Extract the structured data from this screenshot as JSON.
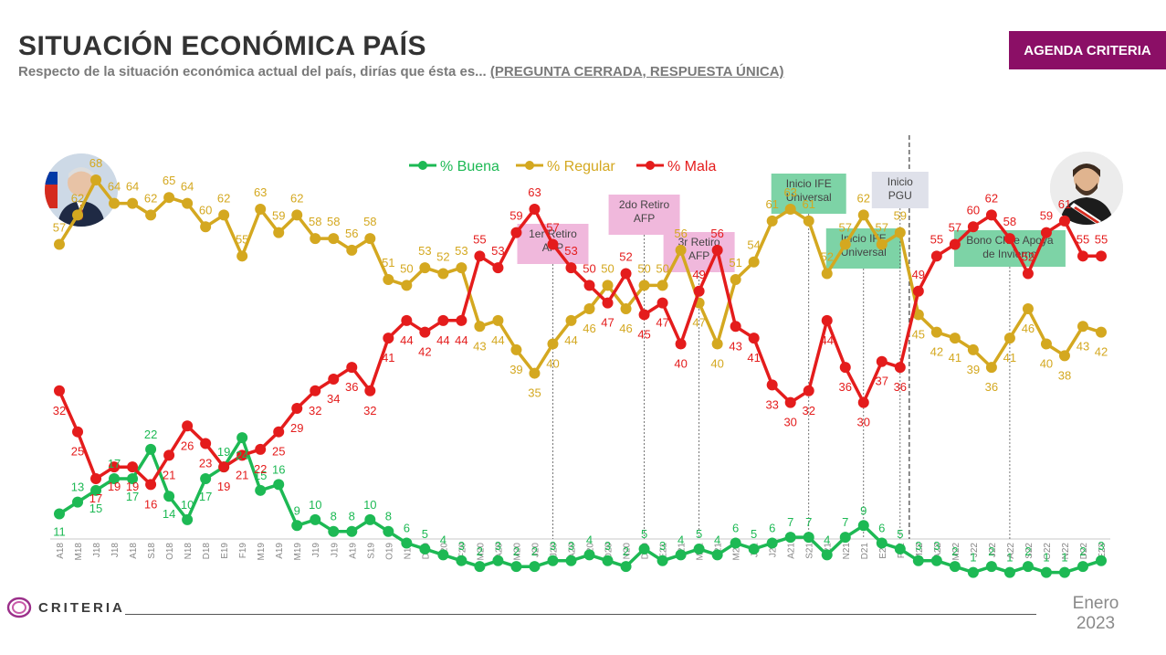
{
  "header": {
    "title": "SITUACIÓN ECONÓMICA PAÍS",
    "subtitle_main": "Respecto de la situación económica actual del país, dirías que ésta es... ",
    "subtitle_emph": "(PREGUNTA CERRADA, RESPUESTA ÚNICA)",
    "badge": "AGENDA CRITERIA"
  },
  "footer": {
    "logo_text": "CRITERIA",
    "date_line1": "Enero",
    "date_line2": "2023"
  },
  "colors": {
    "buena": "#1db954",
    "regular": "#d4a820",
    "mala": "#e41c1c",
    "annotation_pink": "#f0b8dc",
    "annotation_green": "#7dd3a6",
    "annotation_gray": "#dfe1ea",
    "brand": "#8b0f66"
  },
  "chart_data": {
    "type": "line",
    "categories": [
      "A18",
      "M18",
      "J18",
      "J18",
      "A18",
      "S18",
      "O18",
      "N18",
      "D18",
      "E19",
      "F19",
      "M19",
      "A19",
      "M19",
      "J19",
      "J19",
      "A19",
      "S19",
      "O19",
      "N19",
      "D19",
      "E20",
      "F20",
      "M20",
      "A20",
      "M20",
      "J20",
      "J20",
      "A20",
      "S20",
      "O20",
      "N20",
      "D20",
      "E21",
      "F21",
      "M21",
      "A21",
      "M21",
      "J21",
      "J21",
      "A21",
      "S21",
      "O21",
      "N21",
      "D21",
      "E22",
      "F22",
      "M22",
      "A22",
      "M22",
      "J22",
      "J22",
      "A22",
      "S22",
      "O22",
      "N22",
      "D22",
      "E23"
    ],
    "series": [
      {
        "name": "% Buena",
        "color": "#1db954",
        "values": [
          11,
          13,
          15,
          17,
          17,
          22,
          14,
          10,
          17,
          19,
          24,
          15,
          16,
          9,
          10,
          8,
          8,
          10,
          8,
          6,
          5,
          4,
          3,
          2,
          3,
          2,
          2,
          3,
          3,
          4,
          3,
          2,
          5,
          3,
          4,
          5,
          4,
          6,
          5,
          6,
          7,
          7,
          4,
          7,
          9,
          6,
          5,
          3,
          3,
          2,
          1,
          2,
          1,
          2,
          1,
          1,
          2,
          3
        ]
      },
      {
        "name": "% Regular",
        "color": "#d4a820",
        "values": [
          57,
          62,
          68,
          64,
          64,
          62,
          65,
          64,
          60,
          62,
          55,
          63,
          59,
          62,
          58,
          58,
          56,
          58,
          51,
          50,
          53,
          52,
          53,
          43,
          44,
          39,
          35,
          40,
          44,
          46,
          50,
          46,
          50,
          50,
          56,
          47,
          40,
          51,
          54,
          61,
          63,
          61,
          52,
          57,
          62,
          57,
          59,
          45,
          42,
          41,
          39,
          36,
          41,
          46,
          40,
          38,
          43,
          42
        ]
      },
      {
        "name": "% Mala",
        "color": "#e41c1c",
        "values": [
          32,
          25,
          17,
          19,
          19,
          16,
          21,
          26,
          23,
          19,
          21,
          22,
          25,
          29,
          32,
          34,
          36,
          32,
          41,
          44,
          42,
          44,
          44,
          55,
          53,
          59,
          63,
          57,
          53,
          50,
          47,
          52,
          45,
          47,
          40,
          49,
          56,
          43,
          41,
          33,
          30,
          32,
          44,
          36,
          30,
          37,
          36,
          49,
          55,
          57,
          60,
          62,
          58,
          52,
          59,
          61,
          55,
          55
        ]
      }
    ],
    "ylim": [
      0,
      80
    ],
    "legend_position": "top-center",
    "annotations": [
      {
        "label": "1er Retiro\nAFP",
        "at_index": 27,
        "style": "pink"
      },
      {
        "label": "2do Retiro\nAFP",
        "at_index": 32,
        "style": "pink"
      },
      {
        "label": "3r Retiro\nAFP",
        "at_index": 35,
        "style": "pink"
      },
      {
        "label": "Inicio IFE\nUniversal",
        "at_index": 41,
        "style": "green"
      },
      {
        "label": "Inicio IFE\nUniversal",
        "at_index": 44,
        "style": "green"
      },
      {
        "label": "Inicio\nPGU",
        "at_index": 46,
        "style": "gray"
      },
      {
        "label": "Bono Chile Apoya\nde Invierno",
        "at_index": 52,
        "style": "green"
      }
    ],
    "government_change_after_index": 46
  }
}
